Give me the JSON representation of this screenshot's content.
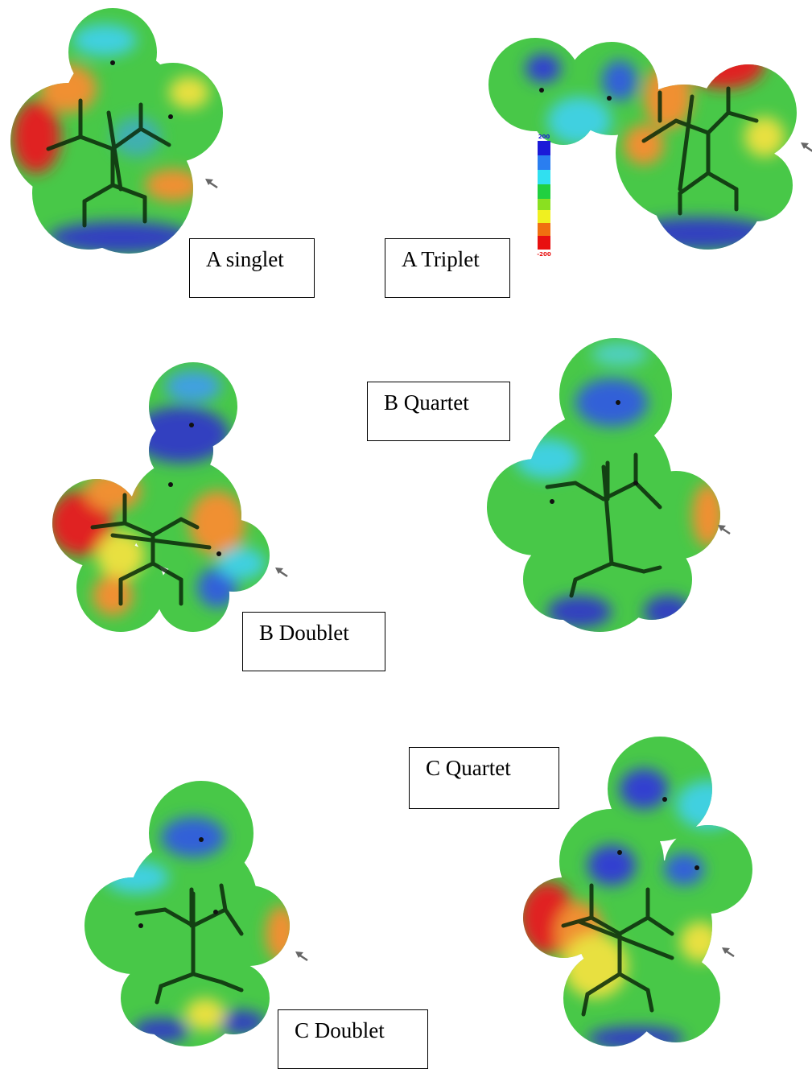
{
  "panels": [
    {
      "label": "A singlet"
    },
    {
      "label": "A Triplet"
    },
    {
      "label": "B Quartet"
    },
    {
      "label": "B Doublet"
    },
    {
      "label": "C Quartet"
    },
    {
      "label": "C Doublet"
    }
  ],
  "color_scale": {
    "max": 200,
    "min": -200
  }
}
